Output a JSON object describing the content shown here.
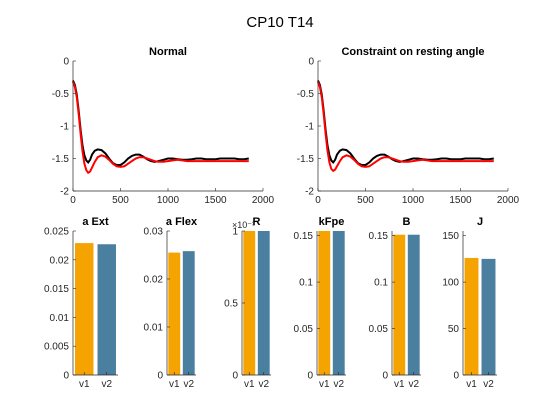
{
  "figure": {
    "title": "CP10 T14",
    "background": "#ffffff",
    "colors": {
      "v1": "#f5a300",
      "v2": "#4a7fa0",
      "black_line": "#000000",
      "red_line": "#ff0000"
    }
  },
  "chart_data": [
    {
      "type": "line",
      "title": "Normal",
      "xlim": [
        0,
        2000
      ],
      "ylim": [
        -2,
        0
      ],
      "xticks": [
        "0",
        "500",
        "1000",
        "1500",
        "2000"
      ],
      "yticks": [
        "0",
        "-0.5",
        "-1",
        "-1.5",
        "-2"
      ],
      "grid": false,
      "series": [
        {
          "color": "#000000",
          "x": [
            0,
            20,
            40,
            60,
            80,
            100,
            120,
            140,
            160,
            180,
            200,
            230,
            260,
            300,
            340,
            380,
            420,
            460,
            500,
            540,
            580,
            620,
            660,
            700,
            740,
            780,
            820,
            860,
            900,
            950,
            1000,
            1050,
            1100,
            1150,
            1200,
            1250,
            1300,
            1350,
            1400,
            1450,
            1500,
            1550,
            1600,
            1650,
            1700,
            1750,
            1800,
            1850
          ],
          "y": [
            -0.3,
            -0.37,
            -0.52,
            -0.77,
            -1.06,
            -1.3,
            -1.45,
            -1.53,
            -1.56,
            -1.52,
            -1.44,
            -1.38,
            -1.36,
            -1.37,
            -1.42,
            -1.5,
            -1.57,
            -1.6,
            -1.6,
            -1.56,
            -1.5,
            -1.46,
            -1.44,
            -1.44,
            -1.47,
            -1.51,
            -1.54,
            -1.55,
            -1.54,
            -1.52,
            -1.5,
            -1.5,
            -1.51,
            -1.52,
            -1.52,
            -1.51,
            -1.5,
            -1.5,
            -1.51,
            -1.51,
            -1.51,
            -1.5,
            -1.5,
            -1.5,
            -1.5,
            -1.51,
            -1.51,
            -1.5
          ]
        },
        {
          "color": "#ff0000",
          "x": [
            0,
            20,
            40,
            60,
            80,
            100,
            120,
            140,
            160,
            180,
            200,
            230,
            260,
            300,
            340,
            380,
            420,
            460,
            500,
            540,
            580,
            620,
            660,
            700,
            740,
            780,
            820,
            860,
            900,
            950,
            1000,
            1050,
            1100,
            1150,
            1200,
            1250,
            1300,
            1350,
            1400,
            1450,
            1500,
            1550,
            1600,
            1650,
            1700,
            1750,
            1800,
            1850
          ],
          "y": [
            -0.32,
            -0.4,
            -0.56,
            -0.82,
            -1.12,
            -1.39,
            -1.58,
            -1.68,
            -1.72,
            -1.7,
            -1.64,
            -1.55,
            -1.48,
            -1.45,
            -1.47,
            -1.52,
            -1.58,
            -1.62,
            -1.63,
            -1.62,
            -1.58,
            -1.54,
            -1.5,
            -1.48,
            -1.48,
            -1.5,
            -1.52,
            -1.54,
            -1.55,
            -1.55,
            -1.54,
            -1.53,
            -1.52,
            -1.53,
            -1.54,
            -1.54,
            -1.54,
            -1.54,
            -1.54,
            -1.54,
            -1.54,
            -1.54,
            -1.54,
            -1.54,
            -1.54,
            -1.54,
            -1.54,
            -1.54
          ]
        }
      ]
    },
    {
      "type": "line",
      "title": "Constraint on resting angle",
      "xlim": [
        0,
        2000
      ],
      "ylim": [
        -2,
        0
      ],
      "xticks": [
        "0",
        "500",
        "1000",
        "1500",
        "2000"
      ],
      "yticks": [
        "0",
        "-0.5",
        "-1",
        "-1.5",
        "-2"
      ],
      "grid": false,
      "series": [
        {
          "color": "#000000",
          "x": [
            0,
            20,
            40,
            60,
            80,
            100,
            120,
            140,
            160,
            180,
            200,
            230,
            260,
            300,
            340,
            380,
            420,
            460,
            500,
            540,
            580,
            620,
            660,
            700,
            740,
            780,
            820,
            860,
            900,
            950,
            1000,
            1050,
            1100,
            1150,
            1200,
            1250,
            1300,
            1350,
            1400,
            1450,
            1500,
            1550,
            1600,
            1650,
            1700,
            1750,
            1800,
            1850
          ],
          "y": [
            -0.3,
            -0.37,
            -0.52,
            -0.77,
            -1.06,
            -1.3,
            -1.45,
            -1.53,
            -1.56,
            -1.52,
            -1.44,
            -1.38,
            -1.36,
            -1.37,
            -1.42,
            -1.5,
            -1.57,
            -1.6,
            -1.6,
            -1.56,
            -1.5,
            -1.46,
            -1.44,
            -1.44,
            -1.47,
            -1.51,
            -1.54,
            -1.55,
            -1.54,
            -1.52,
            -1.5,
            -1.5,
            -1.51,
            -1.52,
            -1.52,
            -1.51,
            -1.5,
            -1.5,
            -1.51,
            -1.51,
            -1.51,
            -1.5,
            -1.5,
            -1.5,
            -1.5,
            -1.51,
            -1.51,
            -1.5
          ]
        },
        {
          "color": "#ff0000",
          "x": [
            0,
            20,
            40,
            60,
            80,
            100,
            120,
            140,
            160,
            180,
            200,
            230,
            260,
            300,
            340,
            380,
            420,
            460,
            500,
            540,
            580,
            620,
            660,
            700,
            740,
            780,
            820,
            860,
            900,
            950,
            1000,
            1050,
            1100,
            1150,
            1200,
            1250,
            1300,
            1350,
            1400,
            1450,
            1500,
            1550,
            1600,
            1650,
            1700,
            1750,
            1800,
            1850
          ],
          "y": [
            -0.32,
            -0.4,
            -0.56,
            -0.82,
            -1.12,
            -1.38,
            -1.56,
            -1.66,
            -1.69,
            -1.67,
            -1.62,
            -1.54,
            -1.48,
            -1.45,
            -1.47,
            -1.52,
            -1.58,
            -1.62,
            -1.63,
            -1.62,
            -1.58,
            -1.54,
            -1.5,
            -1.48,
            -1.48,
            -1.5,
            -1.52,
            -1.54,
            -1.55,
            -1.55,
            -1.54,
            -1.53,
            -1.52,
            -1.53,
            -1.54,
            -1.54,
            -1.54,
            -1.54,
            -1.54,
            -1.54,
            -1.54,
            -1.54,
            -1.54,
            -1.54,
            -1.54,
            -1.54,
            -1.54,
            -1.54
          ]
        }
      ]
    },
    {
      "type": "bar",
      "title": "a Ext",
      "categories": [
        "v1",
        "v2"
      ],
      "values": [
        0.0229,
        0.0227
      ],
      "ylim": [
        0,
        0.025
      ],
      "yticks": [
        "0",
        "0.005",
        "0.01",
        "0.015",
        "0.02",
        "0.025"
      ],
      "colors": [
        "#f5a300",
        "#4a7fa0"
      ]
    },
    {
      "type": "bar",
      "title": "a Flex",
      "categories": [
        "v1",
        "v2"
      ],
      "values": [
        0.0255,
        0.0258
      ],
      "ylim": [
        0,
        0.03
      ],
      "yticks": [
        "0",
        "0.01",
        "0.02",
        "0.03"
      ],
      "colors": [
        "#f5a300",
        "#4a7fa0"
      ]
    },
    {
      "type": "bar",
      "title": "R",
      "categories": [
        "v1",
        "v2"
      ],
      "values": [
        1,
        1
      ],
      "ylim": [
        0,
        1
      ],
      "yticks": [
        "0",
        "0.5",
        "1"
      ],
      "exponent_label": "×10⁻³",
      "colors": [
        "#f5a300",
        "#4a7fa0"
      ]
    },
    {
      "type": "bar",
      "title": "kFpe",
      "categories": [
        "v1",
        "v2"
      ],
      "values": [
        0.155,
        0.155
      ],
      "ylim": [
        0,
        0.155
      ],
      "yticks": [
        "0",
        "0.05",
        "0.1",
        "0.15"
      ],
      "colors": [
        "#f5a300",
        "#4a7fa0"
      ]
    },
    {
      "type": "bar",
      "title": "B",
      "categories": [
        "v1",
        "v2"
      ],
      "values": [
        0.151,
        0.151
      ],
      "ylim": [
        0,
        0.155
      ],
      "yticks": [
        "0",
        "0.05",
        "0.1",
        "0.15"
      ],
      "colors": [
        "#f5a300",
        "#4a7fa0"
      ]
    },
    {
      "type": "bar",
      "title": "J",
      "categories": [
        "v1",
        "v2"
      ],
      "values": [
        126,
        125
      ],
      "ylim": [
        0,
        155
      ],
      "yticks": [
        "0",
        "50",
        "100",
        "150"
      ],
      "colors": [
        "#f5a300",
        "#4a7fa0"
      ]
    }
  ]
}
